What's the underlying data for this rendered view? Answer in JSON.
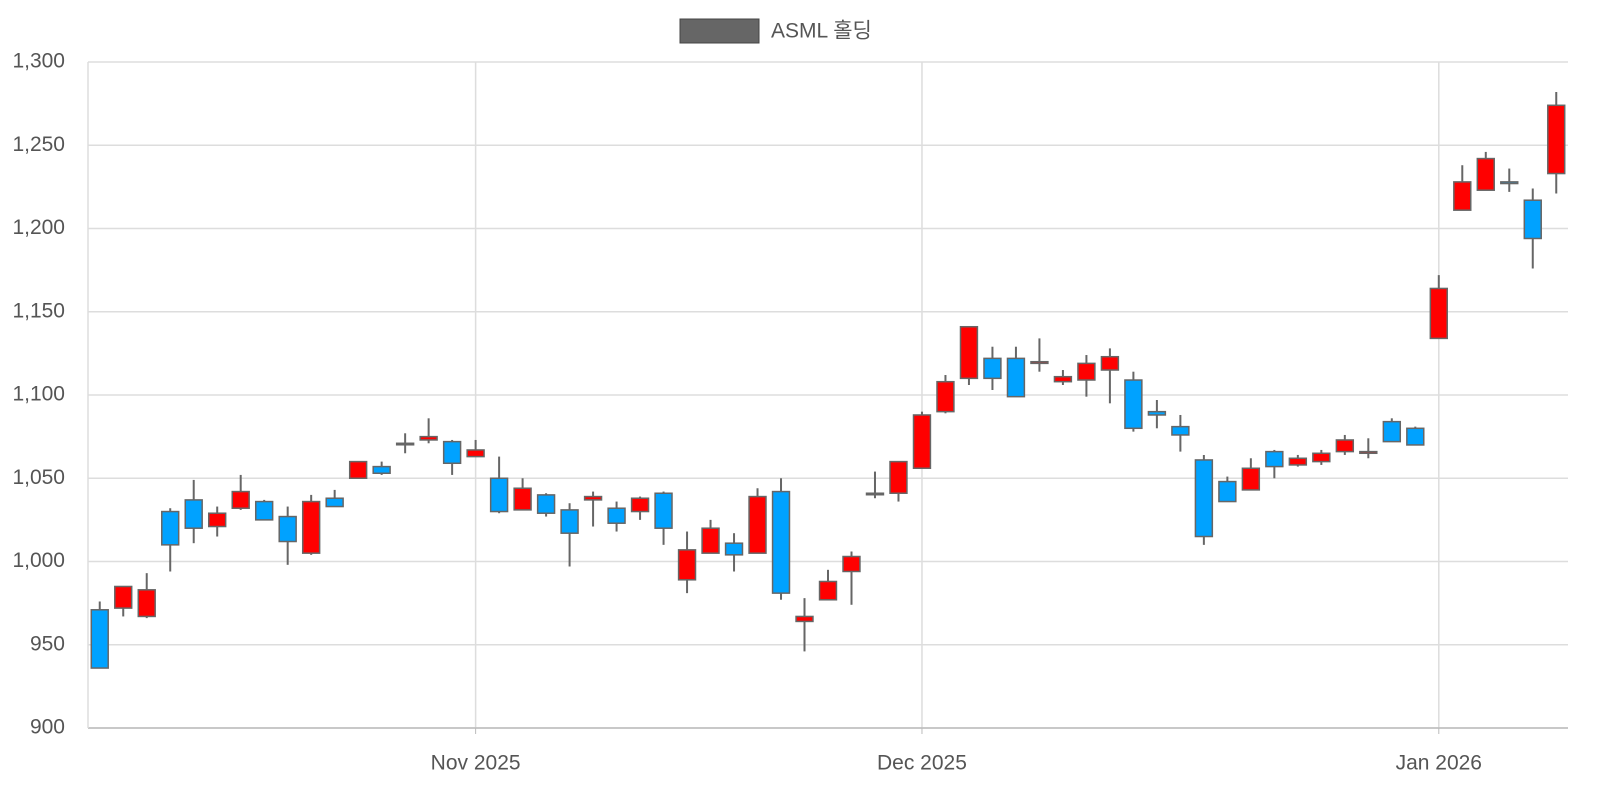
{
  "chart_data": {
    "type": "candlestick",
    "categories": [
      null,
      null,
      null,
      null,
      null,
      null,
      null,
      null,
      null,
      null,
      null,
      null,
      null,
      null,
      null,
      null,
      "Nov 2025",
      null,
      null,
      null,
      null,
      null,
      null,
      null,
      null,
      null,
      null,
      null,
      null,
      null,
      null,
      null,
      null,
      null,
      null,
      "Dec 2025",
      null,
      null,
      null,
      null,
      null,
      null,
      null,
      null,
      null,
      null,
      null,
      null,
      null,
      null,
      null,
      null,
      null,
      null,
      null,
      null,
      null,
      "Jan 2026",
      null,
      null,
      null,
      null,
      null
    ],
    "series": [
      {
        "name": "ASML 홀딩",
        "color": "#666666",
        "up_color": "#ff0000",
        "down_color": "#00a2ff",
        "open": [
          971,
          972,
          967,
          1030,
          1037,
          1021,
          1032,
          1036,
          1027,
          1005,
          1038,
          1050,
          1057,
          1071,
          1073,
          1072,
          1063,
          1050,
          1031,
          1040,
          1031,
          1037,
          1032,
          1030,
          1041,
          989,
          1005,
          1011,
          1005,
          1042,
          964,
          977,
          994,
          1041,
          1041,
          1056,
          1090,
          1110,
          1122,
          1122,
          1119,
          1108,
          1109,
          1115,
          1109,
          1090,
          1081,
          1061,
          1048,
          1043,
          1066,
          1058,
          1060,
          1066,
          1065,
          1084,
          1080,
          1134,
          1211,
          1223,
          1228,
          1217,
          1233
        ],
        "high": [
          976,
          985,
          993,
          1032,
          1049,
          1033,
          1052,
          1037,
          1033,
          1040,
          1043,
          1060,
          1060,
          1077,
          1086,
          1073,
          1073,
          1063,
          1050,
          1041,
          1035,
          1042,
          1036,
          1039,
          1042,
          1018,
          1025,
          1017,
          1044,
          1050,
          978,
          995,
          1006,
          1054,
          1060,
          1090,
          1112,
          1141,
          1129,
          1129,
          1134,
          1115,
          1124,
          1128,
          1114,
          1097,
          1088,
          1064,
          1051,
          1062,
          1067,
          1064,
          1067,
          1076,
          1074,
          1086,
          1081,
          1172,
          1238,
          1246,
          1236,
          1224,
          1282
        ],
        "low": [
          936,
          967,
          966,
          994,
          1011,
          1015,
          1031,
          1025,
          998,
          1004,
          1033,
          1050,
          1052,
          1065,
          1071,
          1052,
          1063,
          1029,
          1031,
          1027,
          997,
          1021,
          1018,
          1025,
          1010,
          981,
          1005,
          994,
          1005,
          977,
          946,
          977,
          974,
          1038,
          1036,
          1056,
          1089,
          1106,
          1103,
          1099,
          1114,
          1106,
          1099,
          1095,
          1078,
          1080,
          1066,
          1010,
          1036,
          1043,
          1050,
          1057,
          1058,
          1064,
          1062,
          1072,
          1070,
          1134,
          1211,
          1223,
          1222,
          1176,
          1221
        ],
        "close": [
          936,
          985,
          983,
          1010,
          1020,
          1029,
          1042,
          1025,
          1012,
          1036,
          1033,
          1060,
          1053,
          1071,
          1075,
          1059,
          1067,
          1030,
          1044,
          1029,
          1017,
          1039,
          1023,
          1038,
          1020,
          1007,
          1020,
          1004,
          1039,
          981,
          967,
          988,
          1003,
          1041,
          1060,
          1088,
          1108,
          1141,
          1110,
          1099,
          1120,
          1111,
          1119,
          1123,
          1080,
          1088,
          1076,
          1015,
          1036,
          1056,
          1057,
          1062,
          1065,
          1073,
          1066,
          1072,
          1070,
          1164,
          1228,
          1242,
          1227,
          1194,
          1274
        ]
      }
    ],
    "ylim": [
      900,
      1300
    ],
    "yticks": [
      900,
      950,
      {
        "value": 1000,
        "label": "1,000"
      },
      {
        "value": 1050,
        "label": "1,050"
      },
      {
        "value": 1100,
        "label": "1,100"
      },
      {
        "value": 1150,
        "label": "1,150"
      },
      {
        "value": 1200,
        "label": "1,200"
      },
      {
        "value": 1250,
        "label": "1,250"
      },
      {
        "value": 1300,
        "label": "1,300"
      }
    ],
    "grid": true,
    "legend": "top"
  }
}
